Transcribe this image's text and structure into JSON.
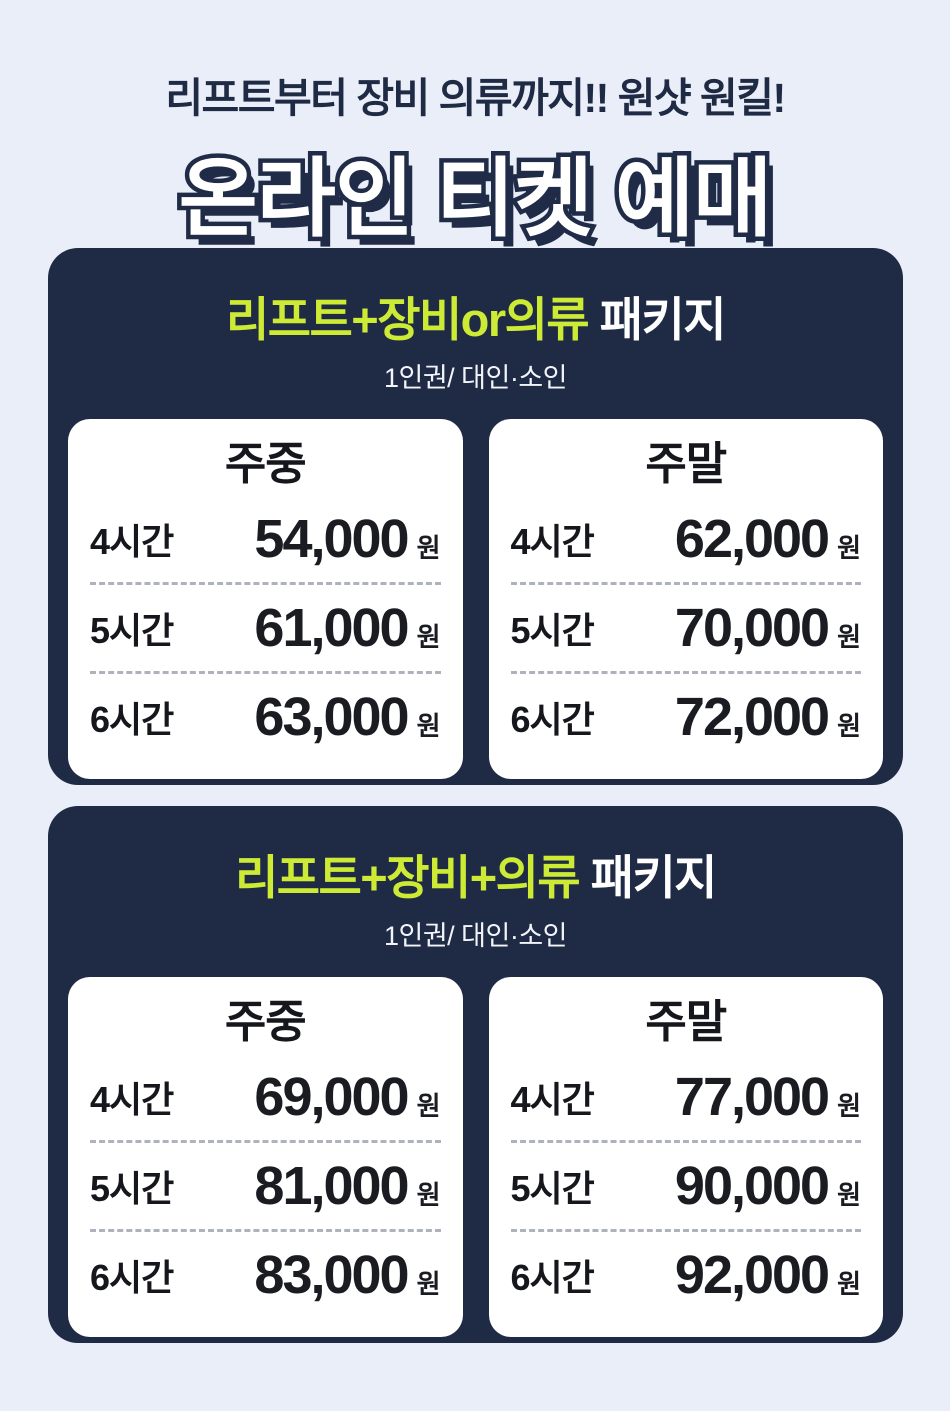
{
  "colors": {
    "background": "#EAEEF9",
    "card_navy": "#1F2B45",
    "highlight_lime": "#CDEA35",
    "panel_white": "#FFFFFF",
    "price_text": "#1A1C22"
  },
  "header": {
    "tagline": "리프트부터 장비 의류까지!! 원샷 원킬!",
    "title": "온라인 티켓 예매"
  },
  "packages": [
    {
      "title_highlight": "리프트+장비or의류",
      "title_rest": " 패키지",
      "subtitle": "1인권/ 대인·소인",
      "columns": [
        {
          "heading": "주중",
          "rows": [
            {
              "label": "4시간",
              "price": "54,000",
              "unit": "원"
            },
            {
              "label": "5시간",
              "price": "61,000",
              "unit": "원"
            },
            {
              "label": "6시간",
              "price": "63,000",
              "unit": "원"
            }
          ]
        },
        {
          "heading": "주말",
          "rows": [
            {
              "label": "4시간",
              "price": "62,000",
              "unit": "원"
            },
            {
              "label": "5시간",
              "price": "70,000",
              "unit": "원"
            },
            {
              "label": "6시간",
              "price": "72,000",
              "unit": "원"
            }
          ]
        }
      ]
    },
    {
      "title_highlight": "리프트+장비+의류",
      "title_rest": " 패키지",
      "subtitle": "1인권/ 대인·소인",
      "columns": [
        {
          "heading": "주중",
          "rows": [
            {
              "label": "4시간",
              "price": "69,000",
              "unit": "원"
            },
            {
              "label": "5시간",
              "price": "81,000",
              "unit": "원"
            },
            {
              "label": "6시간",
              "price": "83,000",
              "unit": "원"
            }
          ]
        },
        {
          "heading": "주말",
          "rows": [
            {
              "label": "4시간",
              "price": "77,000",
              "unit": "원"
            },
            {
              "label": "5시간",
              "price": "90,000",
              "unit": "원"
            },
            {
              "label": "6시간",
              "price": "92,000",
              "unit": "원"
            }
          ]
        }
      ]
    }
  ]
}
